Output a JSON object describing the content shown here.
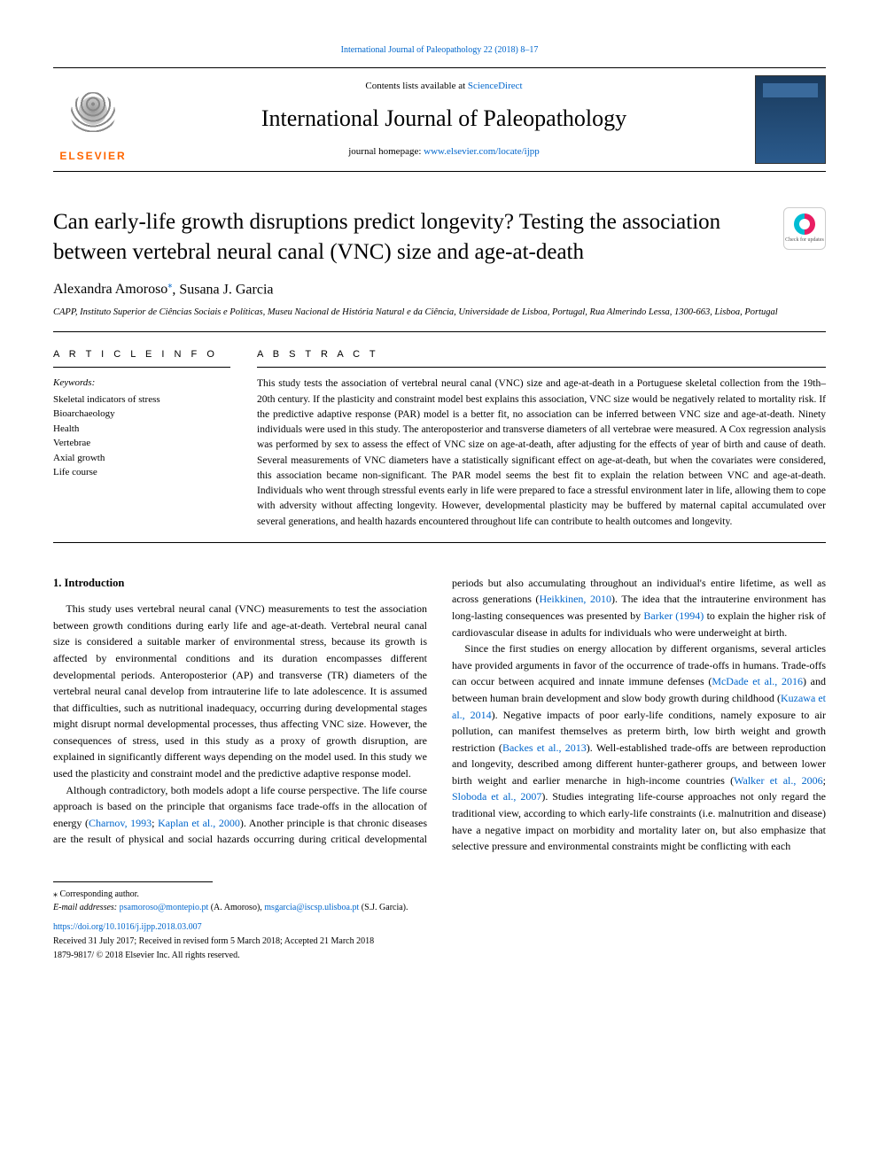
{
  "top_citation": "International Journal of Paleopathology 22 (2018) 8–17",
  "header": {
    "contents_prefix": "Contents lists available at ",
    "contents_link": "ScienceDirect",
    "journal_name": "International Journal of Paleopathology",
    "homepage_prefix": "journal homepage: ",
    "homepage_link": "www.elsevier.com/locate/ijpp",
    "elsevier_label": "ELSEVIER",
    "cover_text": "International Journal of Paleopathology"
  },
  "check_updates_label": "Check for updates",
  "title": "Can early-life growth disruptions predict longevity? Testing the association between vertebral neural canal (VNC) size and age-at-death",
  "authors": [
    {
      "name": "Alexandra Amoroso",
      "marker": "⁎"
    },
    {
      "name": "Susana J. Garcia",
      "marker": ""
    }
  ],
  "affiliation": "CAPP, Instituto Superior de Ciências Sociais e Políticas, Museu Nacional de História Natural e da Ciência, Universidade de Lisboa, Portugal, Rua Almerindo Lessa, 1300-663, Lisboa, Portugal",
  "article_info_heading": "A R T I C L E  I N F O",
  "keywords_label": "Keywords:",
  "keywords": [
    "Skeletal indicators of stress",
    "Bioarchaeology",
    "Health",
    "Vertebrae",
    "Axial growth",
    "Life course"
  ],
  "abstract_heading": "A B S T R A C T",
  "abstract": "This study tests the association of vertebral neural canal (VNC) size and age-at-death in a Portuguese skeletal collection from the 19th–20th century. If the plasticity and constraint model best explains this association, VNC size would be negatively related to mortality risk. If the predictive adaptive response (PAR) model is a better fit, no association can be inferred between VNC size and age-at-death. Ninety individuals were used in this study. The anteroposterior and transverse diameters of all vertebrae were measured. A Cox regression analysis was performed by sex to assess the effect of VNC size on age-at-death, after adjusting for the effects of year of birth and cause of death. Several measurements of VNC diameters have a statistically significant effect on age-at-death, but when the covariates were considered, this association became non-significant. The PAR model seems the best fit to explain the relation between VNC and age-at-death. Individuals who went through stressful events early in life were prepared to face a stressful environment later in life, allowing them to cope with adversity without affecting longevity. However, developmental plasticity may be buffered by maternal capital accumulated over several generations, and health hazards encountered throughout life can contribute to health outcomes and longevity.",
  "section1_heading": "1. Introduction",
  "body": {
    "p1": "This study uses vertebral neural canal (VNC) measurements to test the association between growth conditions during early life and age-at-death. Vertebral neural canal size is considered a suitable marker of environmental stress, because its growth is affected by environmental conditions and its duration encompasses different developmental periods. Anteroposterior (AP) and transverse (TR) diameters of the vertebral neural canal develop from intrauterine life to late adolescence. It is assumed that difficulties, such as nutritional inadequacy, occurring during developmental stages might disrupt normal developmental processes, thus affecting VNC size. However, the consequences of stress, used in this study as a proxy of growth disruption, are explained in significantly different ways depending on the model used. In this study we used the plasticity and constraint model and the predictive adaptive response model.",
    "p2a": "Although contradictory, both models adopt a life course perspective. The life course approach is based on the principle that organisms face trade-offs in the allocation of energy (",
    "p2_cite1": "Charnov, 1993",
    "p2b": "; ",
    "p2_cite2": "Kaplan et al., 2000",
    "p2c": "). Another principle is that chronic diseases are the result of physical and social hazards occurring during critical developmental",
    "p3a": "periods but also accumulating throughout an individual's entire lifetime, as well as across generations (",
    "p3_cite1": "Heikkinen, 2010",
    "p3b": "). The idea that the intrauterine environment has long-lasting consequences was presented by ",
    "p3_cite2": "Barker (1994)",
    "p3c": " to explain the higher risk of cardiovascular disease in adults for individuals who were underweight at birth.",
    "p4a": "Since the first studies on energy allocation by different organisms, several articles have provided arguments in favor of the occurrence of trade-offs in humans. Trade-offs can occur between acquired and innate immune defenses (",
    "p4_cite1": "McDade et al., 2016",
    "p4b": ") and between human brain development and slow body growth during childhood (",
    "p4_cite2": "Kuzawa et al., 2014",
    "p4c": "). Negative impacts of poor early-life conditions, namely exposure to air pollution, can manifest themselves as preterm birth, low birth weight and growth restriction (",
    "p4_cite3": "Backes et al., 2013",
    "p4d": "). Well-established trade-offs are between reproduction and longevity, described among different hunter-gatherer groups, and between lower birth weight and earlier menarche in high-income countries (",
    "p4_cite4": "Walker et al., 2006",
    "p4e": "; ",
    "p4_cite5": "Sloboda et al., 2007",
    "p4f": "). Studies integrating life-course approaches not only regard the traditional view, according to which early-life constraints (i.e. malnutrition and disease) have a negative impact on morbidity and mortality later on, but also emphasize that selective pressure and environmental constraints might be conflicting with each"
  },
  "footer": {
    "corresponding": "⁎ Corresponding author.",
    "email_label": "E-mail addresses: ",
    "email1": "psamoroso@montepio.pt",
    "email1_auth": " (A. Amoroso), ",
    "email2": "msgarcia@iscsp.ulisboa.pt",
    "email2_auth": " (S.J. Garcia).",
    "doi": "https://doi.org/10.1016/j.ijpp.2018.03.007",
    "received": "Received 31 July 2017; Received in revised form 5 March 2018; Accepted 21 March 2018",
    "copyright": "1879-9817/ © 2018 Elsevier Inc. All rights reserved."
  },
  "colors": {
    "link": "#0066cc",
    "elsevier_orange": "#ff6600",
    "text": "#000000",
    "background": "#ffffff"
  }
}
